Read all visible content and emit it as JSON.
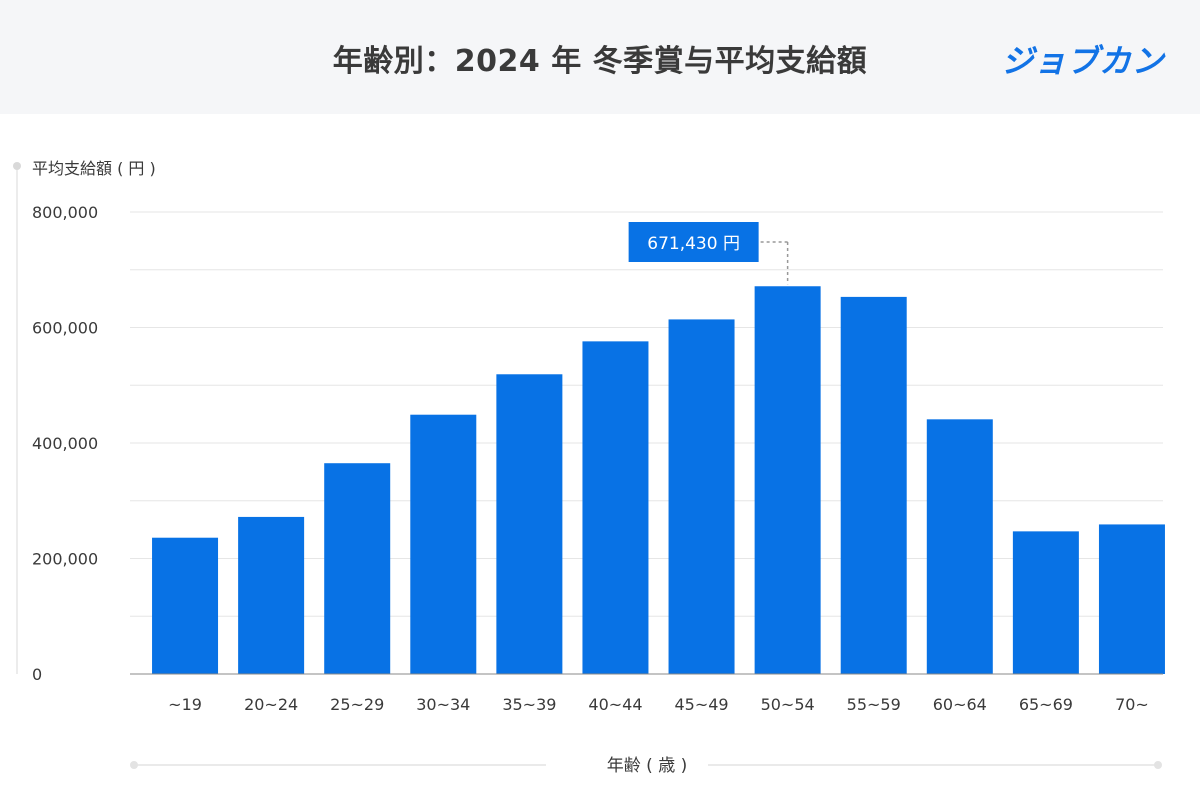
{
  "header": {
    "title": "年齢別：2024 年 冬季賞与平均支給額",
    "logo": "ジョブカン"
  },
  "colors": {
    "bar": "#0872e5",
    "callout": "#0872e5",
    "grid": "#e6e6e6",
    "header_bg": "#f5f6f8"
  },
  "chart_data": {
    "type": "bar",
    "title": "年齢別：2024 年 冬季賞与平均支給額",
    "ylabel": "平均支給額 ( 円 )",
    "xlabel": "年齢 ( 歳 )",
    "categories": [
      "~19",
      "20~24",
      "25~29",
      "30~34",
      "35~39",
      "40~44",
      "45~49",
      "50~54",
      "55~59",
      "60~64",
      "65~69",
      "70~"
    ],
    "values": [
      236000,
      272000,
      365000,
      449000,
      519000,
      576000,
      614000,
      671430,
      653000,
      441000,
      247000,
      259000
    ],
    "ylim": [
      0,
      800000
    ],
    "yticks": [
      0,
      200000,
      400000,
      600000,
      800000
    ],
    "ytick_labels": [
      "0",
      "200,000",
      "400,000",
      "600,000",
      "800,000"
    ],
    "grid": true,
    "annotation": {
      "category": "50~54",
      "text": "671,430 円"
    }
  }
}
